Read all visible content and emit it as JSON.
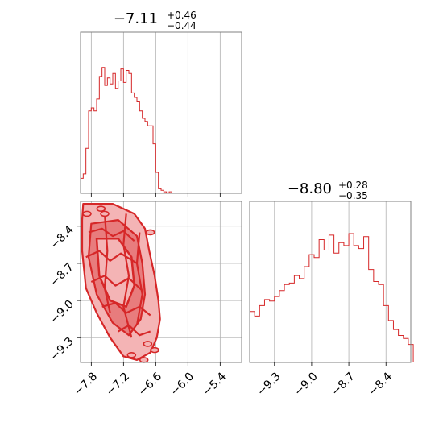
{
  "colors": {
    "series": "#d62728",
    "grid": "#b0b0b0",
    "frame": "#808080",
    "fill_light": "#f4b4b5",
    "fill_mid": "#e87c7d"
  },
  "chart_data": [
    {
      "type": "histogram",
      "panel": "top-left",
      "title": {
        "main": "−7.11",
        "plus": "+0.46",
        "minus": "−0.44"
      },
      "xlim": [
        -8.0,
        -5.0
      ],
      "grid": true,
      "bins": [
        [
          -8.0,
          0.1
        ],
        [
          -7.95,
          0.13
        ],
        [
          -7.9,
          0.3
        ],
        [
          -7.85,
          0.55
        ],
        [
          -7.8,
          0.57
        ],
        [
          -7.75,
          0.55
        ],
        [
          -7.7,
          0.63
        ],
        [
          -7.65,
          0.78
        ],
        [
          -7.6,
          0.84
        ],
        [
          -7.55,
          0.72
        ],
        [
          -7.5,
          0.77
        ],
        [
          -7.45,
          0.73
        ],
        [
          -7.4,
          0.8
        ],
        [
          -7.35,
          0.7
        ],
        [
          -7.3,
          0.75
        ],
        [
          -7.25,
          0.83
        ],
        [
          -7.2,
          0.74
        ],
        [
          -7.15,
          0.82
        ],
        [
          -7.1,
          0.8
        ],
        [
          -7.05,
          0.67
        ],
        [
          -7.0,
          0.64
        ],
        [
          -6.95,
          0.61
        ],
        [
          -6.9,
          0.55
        ],
        [
          -6.85,
          0.5
        ],
        [
          -6.8,
          0.48
        ],
        [
          -6.75,
          0.45
        ],
        [
          -6.7,
          0.45
        ],
        [
          -6.65,
          0.33
        ],
        [
          -6.6,
          0.14
        ],
        [
          -6.55,
          0.03
        ],
        [
          -6.5,
          0.02
        ],
        [
          -6.45,
          0.01
        ],
        [
          -6.4,
          0.0
        ],
        [
          -6.35,
          0.01
        ],
        [
          -6.3,
          0.0
        ]
      ]
    },
    {
      "type": "histogram",
      "panel": "bottom-right",
      "title": {
        "main": "−8.80",
        "plus": "+0.28",
        "minus": "−0.35"
      },
      "xlim": [
        -9.5,
        -8.2
      ],
      "xticks": [
        "−9.3",
        "−9.0",
        "−8.7",
        "−8.4"
      ],
      "xtick_values": [
        -9.3,
        -9.0,
        -8.7,
        -8.4
      ],
      "grid": true,
      "bins": [
        [
          -9.5,
          0.34
        ],
        [
          -9.46,
          0.31
        ],
        [
          -9.42,
          0.38
        ],
        [
          -9.38,
          0.42
        ],
        [
          -9.34,
          0.41
        ],
        [
          -9.3,
          0.44
        ],
        [
          -9.26,
          0.48
        ],
        [
          -9.22,
          0.52
        ],
        [
          -9.18,
          0.53
        ],
        [
          -9.14,
          0.58
        ],
        [
          -9.1,
          0.56
        ],
        [
          -9.06,
          0.64
        ],
        [
          -9.02,
          0.72
        ],
        [
          -8.98,
          0.7
        ],
        [
          -8.94,
          0.82
        ],
        [
          -8.9,
          0.75
        ],
        [
          -8.86,
          0.85
        ],
        [
          -8.82,
          0.73
        ],
        [
          -8.78,
          0.8
        ],
        [
          -8.74,
          0.78
        ],
        [
          -8.7,
          0.86
        ],
        [
          -8.66,
          0.78
        ],
        [
          -8.62,
          0.76
        ],
        [
          -8.58,
          0.84
        ],
        [
          -8.54,
          0.62
        ],
        [
          -8.5,
          0.54
        ],
        [
          -8.46,
          0.52
        ],
        [
          -8.42,
          0.38
        ],
        [
          -8.38,
          0.28
        ],
        [
          -8.34,
          0.22
        ],
        [
          -8.3,
          0.18
        ],
        [
          -8.26,
          0.16
        ],
        [
          -8.22,
          0.12
        ]
      ]
    },
    {
      "type": "contour",
      "panel": "bottom-left",
      "xlim": [
        -8.0,
        -5.0
      ],
      "ylim": [
        -9.5,
        -8.2
      ],
      "xticks": [
        "−7.8",
        "−7.2",
        "−6.6",
        "−6.0",
        "−5.4"
      ],
      "xtick_values": [
        -7.8,
        -7.2,
        -6.6,
        -6.0,
        -5.4
      ],
      "yticks": [
        "−8.4",
        "−8.7",
        "−9.0",
        "−9.3"
      ],
      "ytick_values": [
        -8.4,
        -8.7,
        -9.0,
        -9.3
      ],
      "grid": true,
      "region": {
        "outer": [
          [
            -7.95,
            -8.22
          ],
          [
            -7.4,
            -8.22
          ],
          [
            -7.0,
            -8.3
          ],
          [
            -6.8,
            -8.42
          ],
          [
            -6.72,
            -8.6
          ],
          [
            -6.62,
            -8.8
          ],
          [
            -6.55,
            -9.0
          ],
          [
            -6.52,
            -9.15
          ],
          [
            -6.58,
            -9.3
          ],
          [
            -6.7,
            -9.42
          ],
          [
            -6.95,
            -9.48
          ],
          [
            -7.2,
            -9.45
          ],
          [
            -7.45,
            -9.3
          ],
          [
            -7.7,
            -9.1
          ],
          [
            -7.9,
            -8.9
          ],
          [
            -7.97,
            -8.6
          ],
          [
            -7.97,
            -8.35
          ]
        ],
        "inner": [
          [
            -7.8,
            -8.38
          ],
          [
            -7.3,
            -8.35
          ],
          [
            -6.95,
            -8.48
          ],
          [
            -6.85,
            -8.7
          ],
          [
            -6.8,
            -8.95
          ],
          [
            -6.88,
            -9.15
          ],
          [
            -7.1,
            -9.28
          ],
          [
            -7.4,
            -9.18
          ],
          [
            -7.7,
            -8.95
          ],
          [
            -7.85,
            -8.65
          ]
        ],
        "core": [
          [
            -7.7,
            -8.5
          ],
          [
            -7.3,
            -8.5
          ],
          [
            -7.05,
            -8.65
          ],
          [
            -7.0,
            -8.88
          ],
          [
            -7.15,
            -9.05
          ],
          [
            -7.45,
            -9.0
          ],
          [
            -7.65,
            -8.8
          ]
        ],
        "outliers": [
          [
            -7.62,
            -8.26
          ],
          [
            -7.55,
            -8.3
          ],
          [
            -6.75,
            -9.35
          ],
          [
            -6.62,
            -9.4
          ],
          [
            -6.82,
            -9.48
          ],
          [
            -7.05,
            -9.44
          ],
          [
            -7.88,
            -8.3
          ],
          [
            -6.7,
            -8.45
          ]
        ]
      }
    }
  ]
}
